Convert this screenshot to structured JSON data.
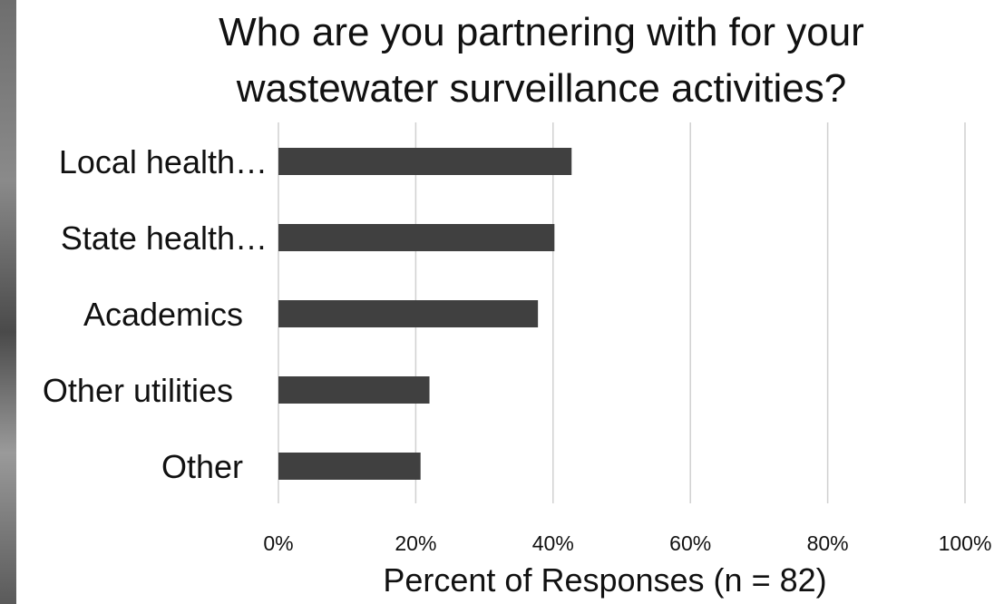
{
  "chart_data": {
    "type": "bar",
    "orientation": "horizontal",
    "title_lines": [
      "Who are you partnering with for your",
      "wastewater surveillance activities?"
    ],
    "categories": [
      "Local health…",
      "State health…",
      "Academics",
      "Other utilities",
      "Other"
    ],
    "values": [
      42.7,
      40.2,
      37.8,
      22.0,
      20.7
    ],
    "xlabel": "Percent of Responses (n = 82)",
    "xlim": [
      0,
      100
    ],
    "x_ticks": [
      0,
      20,
      40,
      60,
      80,
      100
    ],
    "x_tick_labels": [
      "0%",
      "20%",
      "40%",
      "60%",
      "80%",
      "100%"
    ],
    "grid": true,
    "bar_color": "#404040"
  }
}
